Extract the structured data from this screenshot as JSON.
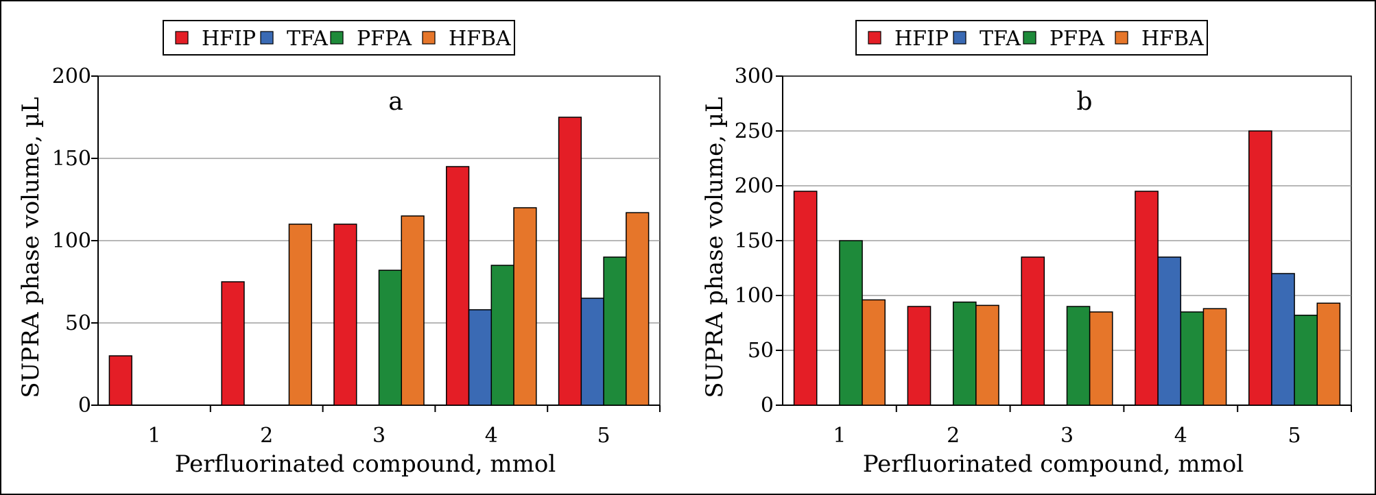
{
  "colors": {
    "HFIP": "#e41e26",
    "TFA": "#3a6ab4",
    "PFPA": "#1e8a3a",
    "HFBA": "#e6762a"
  },
  "chart_data": [
    {
      "type": "bar",
      "panel_label": "a",
      "title": "",
      "xlabel": "Perfluorinated compound, mmol",
      "ylabel": "SUPRA phase volume, µL",
      "categories": [
        "1",
        "2",
        "3",
        "4",
        "5"
      ],
      "ylim": [
        0,
        200
      ],
      "yticks": [
        0,
        50,
        100,
        150,
        200
      ],
      "grid": true,
      "legend": "top",
      "series": [
        {
          "name": "HFIP",
          "values": [
            30,
            75,
            110,
            145,
            175
          ]
        },
        {
          "name": "TFA",
          "values": [
            0,
            0,
            0,
            58,
            65
          ]
        },
        {
          "name": "PFPA",
          "values": [
            0,
            0,
            82,
            85,
            90
          ]
        },
        {
          "name": "HFBA",
          "values": [
            0,
            110,
            115,
            120,
            117
          ]
        }
      ]
    },
    {
      "type": "bar",
      "panel_label": "b",
      "title": "",
      "xlabel": "Perfluorinated compound, mmol",
      "ylabel": "SUPRA phase volume, µL",
      "categories": [
        "1",
        "2",
        "3",
        "4",
        "5"
      ],
      "ylim": [
        0,
        300
      ],
      "yticks": [
        0,
        50,
        100,
        150,
        200,
        250,
        300
      ],
      "grid": true,
      "legend": "top",
      "series": [
        {
          "name": "HFIP",
          "values": [
            195,
            90,
            135,
            195,
            250
          ]
        },
        {
          "name": "TFA",
          "values": [
            0,
            0,
            0,
            135,
            120
          ]
        },
        {
          "name": "PFPA",
          "values": [
            150,
            94,
            90,
            85,
            82
          ]
        },
        {
          "name": "HFBA",
          "values": [
            96,
            91,
            85,
            88,
            93
          ]
        }
      ]
    }
  ]
}
